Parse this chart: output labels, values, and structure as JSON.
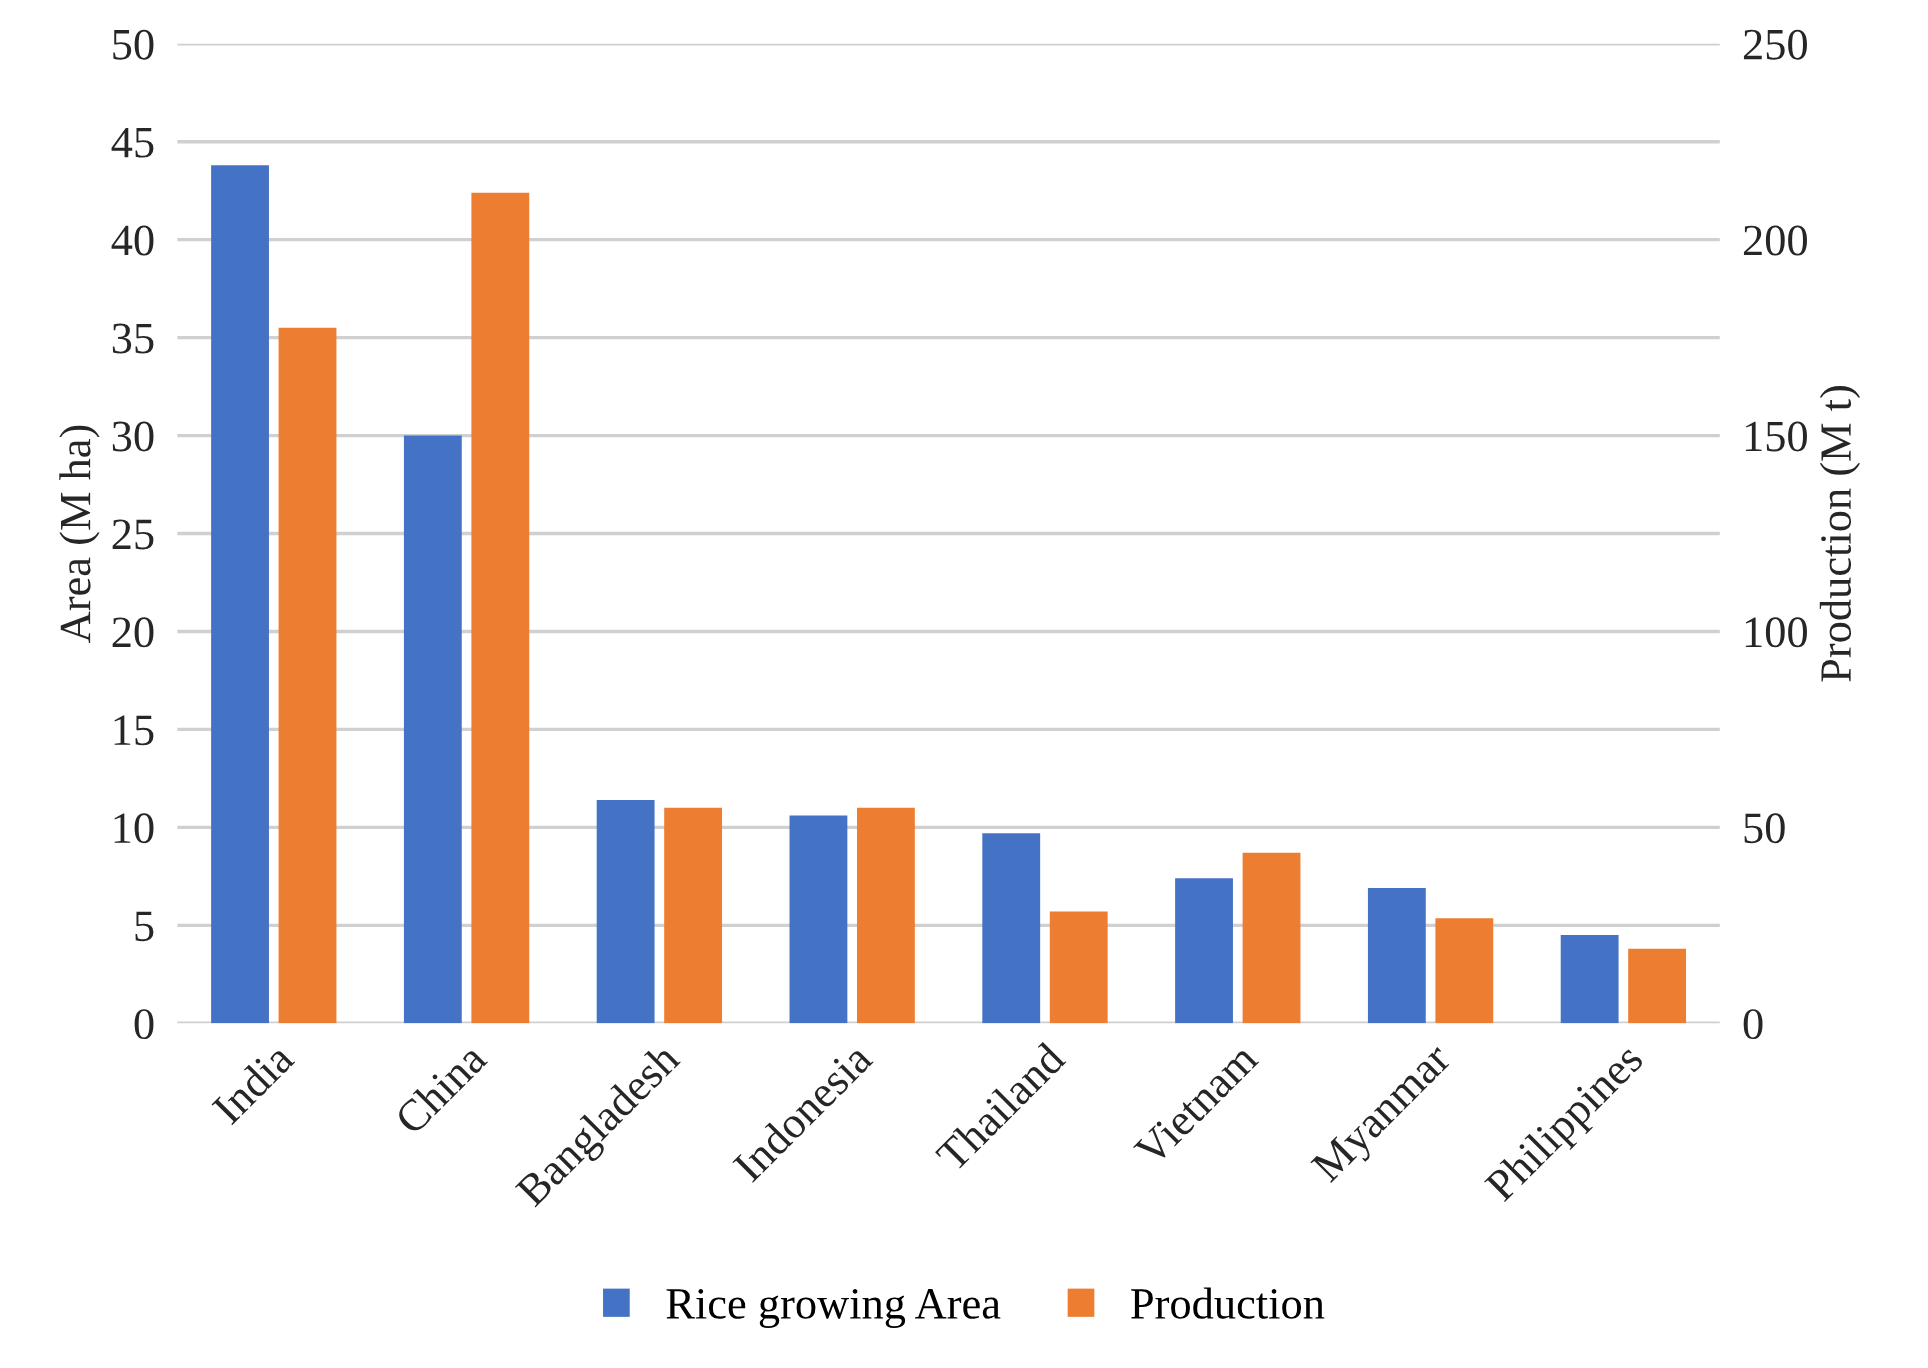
{
  "chart_data": {
    "type": "bar",
    "categories": [
      "India",
      "China",
      "Bangladesh",
      "Indonesia",
      "Thailand",
      "Vietnam",
      "Myanmar",
      "Philippines"
    ],
    "series": [
      {
        "name": "Rice growing Area",
        "color": "#4472c4",
        "values": [
          43.8,
          30.0,
          11.4,
          10.6,
          9.7,
          7.4,
          6.9,
          4.5
        ]
      },
      {
        "name": "Production",
        "color": "#ed7d31",
        "axis": "y2",
        "values": [
          177.5,
          212,
          55,
          55,
          28.5,
          43.5,
          26.8,
          19
        ]
      }
    ],
    "ylabel": "Area (M ha)",
    "y2label": "Production (M t)",
    "ylim": [
      0,
      50
    ],
    "yticks": [
      0,
      5,
      10,
      15,
      20,
      25,
      30,
      35,
      40,
      45,
      50
    ],
    "y2lim": [
      0,
      250
    ],
    "y2ticks": [
      0,
      50,
      100,
      150,
      200,
      250
    ],
    "grid": "y",
    "legend": "bottom"
  }
}
